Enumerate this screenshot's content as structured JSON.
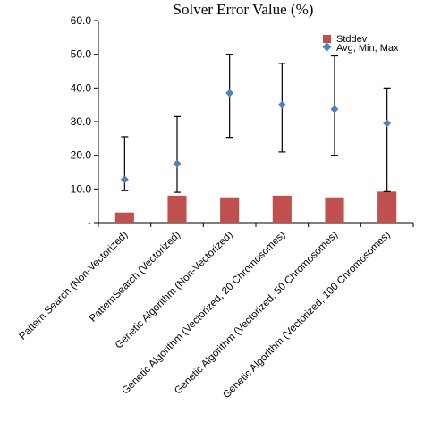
{
  "chart_data": {
    "type": "bar",
    "title": "Solver Error Value (%)",
    "xlabel": "",
    "ylabel": "",
    "ylim": [
      0,
      60
    ],
    "yticks": [
      0,
      10,
      20,
      30,
      40,
      50,
      60
    ],
    "ytick_labels": [
      "-",
      "10.0",
      "20.0",
      "30.0",
      "40.0",
      "50.0",
      "60.0"
    ],
    "grid": false,
    "legend_position": "top-right",
    "categories": [
      "Pattern Search (Non-Vectorized)",
      "PatternSearch (Vectorized)",
      "Genetic Algorithm (Non-Vectorized)",
      "Genetic Algorithm (Vectorized, 20 Chromosomes)",
      "Genetic Algorithm (Vectorized, 50 Chromosomes)",
      "Genetic Algorithm (Vectorized, 100 Chromosomes)"
    ],
    "series": [
      {
        "name": "Stddev",
        "kind": "bar",
        "color": "#c0504d",
        "values": [
          3.0,
          8.0,
          7.5,
          8.0,
          7.5,
          9.2
        ]
      },
      {
        "name": "Avg, Min, Max",
        "kind": "marker",
        "color": "#4f81bd",
        "avg": [
          12.8,
          17.5,
          38.5,
          35.0,
          33.7,
          29.5
        ],
        "min": [
          9.5,
          9.0,
          25.3,
          21.0,
          20.0,
          9.2
        ],
        "max": [
          25.5,
          31.5,
          50.0,
          47.3,
          49.5,
          40.0
        ]
      }
    ]
  }
}
